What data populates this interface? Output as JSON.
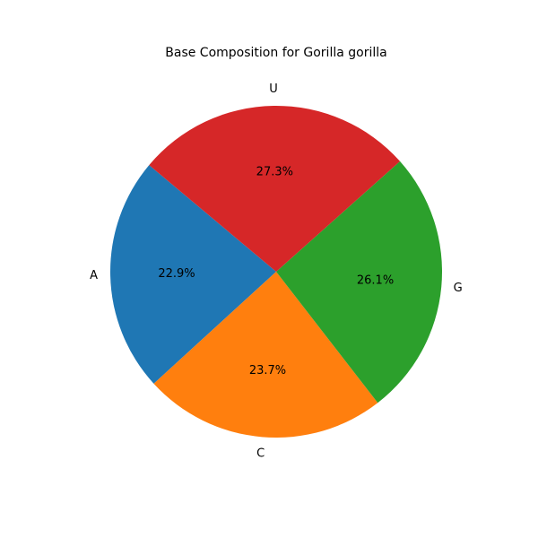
{
  "chart_data": {
    "type": "pie",
    "title": "Base Composition for Gorilla gorilla",
    "categories": [
      "A",
      "C",
      "G",
      "U"
    ],
    "values": [
      22.9,
      23.7,
      26.1,
      27.3
    ],
    "value_labels": [
      "22.9%",
      "23.7%",
      "26.1%",
      "27.3%"
    ],
    "colors": [
      "#1f77b4",
      "#ff7f0e",
      "#2ca02c",
      "#d62728"
    ],
    "start_angle_deg": 140,
    "direction": "counterclockwise",
    "legend": "none"
  }
}
